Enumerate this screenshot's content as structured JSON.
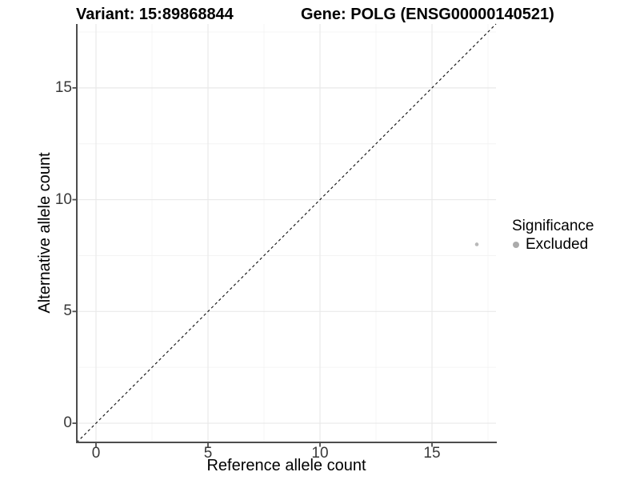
{
  "chart_data": {
    "type": "scatter",
    "titles": {
      "left": "Variant: 15:89868844",
      "right": "Gene: POLG (ENSG00000140521)"
    },
    "xlabel": "Reference allele count",
    "ylabel": "Alternative allele count",
    "xlim": [
      -0.857,
      17.857
    ],
    "ylim": [
      -0.857,
      17.857
    ],
    "ticks": {
      "x_major": [
        0,
        5,
        10,
        15
      ],
      "y_major": [
        0,
        5,
        10,
        15
      ],
      "x_minor": [
        2.5,
        7.5,
        12.5,
        17.5
      ],
      "y_minor": [
        2.5,
        7.5,
        12.5,
        17.5
      ]
    },
    "grid": {
      "major_color": "#e9e9e9",
      "minor_color": "#f4f4f4"
    },
    "axis": {
      "line_color": "#4d4d4d",
      "tick_color": "#4d4d4d",
      "text_color": "#383838"
    },
    "identity_line": {
      "style": "dashed",
      "equation": "y = x",
      "color": "#161616"
    },
    "series": [
      {
        "name": "Excluded",
        "color": "#b9b9b9",
        "points": [
          [
            17,
            8
          ]
        ]
      }
    ],
    "legend": {
      "title": "Significance",
      "position": "right",
      "entries": [
        {
          "label": "Excluded",
          "color": "#ababab"
        }
      ]
    }
  }
}
